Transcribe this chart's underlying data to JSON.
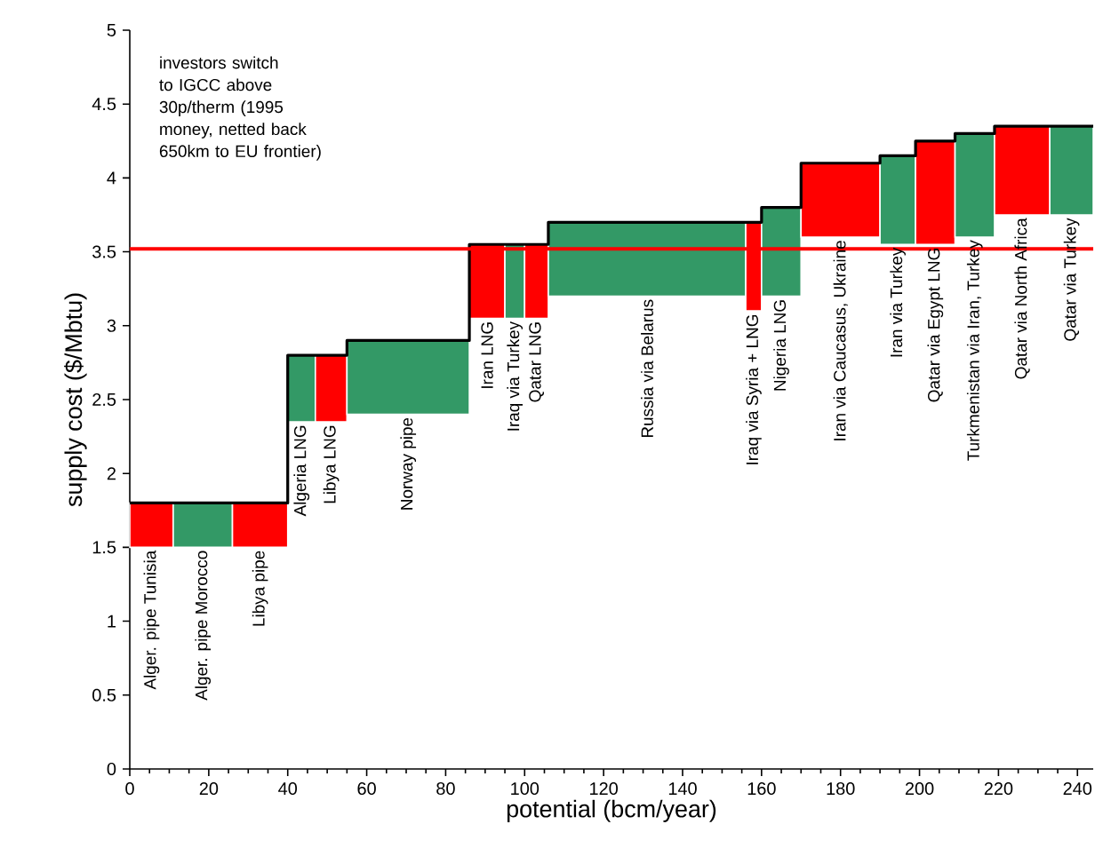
{
  "chart_data": {
    "type": "histogram",
    "xlabel": "potential (bcm/year)",
    "ylabel": "supply cost ($/Mbtu)",
    "bins": [
      0,
      11,
      26,
      40,
      47,
      55,
      86,
      95,
      100,
      106,
      156,
      160,
      170,
      190,
      199,
      209,
      219,
      233,
      244
    ],
    "base": [
      1.5,
      1.5,
      1.5,
      2.35,
      2.35,
      2.4,
      3.05,
      3.05,
      3.05,
      3.2,
      3.1,
      3.2,
      3.6,
      3.55,
      3.55,
      3.6,
      3.75,
      3.75
    ],
    "values": [
      0.3,
      0.3,
      0.3,
      0.45,
      0.45,
      0.5,
      0.5,
      0.5,
      0.5,
      0.5,
      0.6,
      0.6,
      0.5,
      0.6,
      0.7,
      0.7,
      0.6,
      0.6
    ],
    "colors": [
      "#ff0000",
      "#339966",
      "#ff0000",
      "#339966",
      "#ff0000",
      "#339966",
      "#ff0000",
      "#339966",
      "#ff0000",
      "#339966",
      "#ff0000",
      "#339966",
      "#ff0000",
      "#339966",
      "#ff0000",
      "#339966",
      "#ff0000",
      "#339966"
    ],
    "series": [
      {
        "type": "step",
        "color": "#000000",
        "x": [
          0,
          11,
          26,
          40,
          47,
          55,
          86,
          95,
          100,
          106,
          156,
          160,
          170,
          190,
          199,
          209,
          219,
          233,
          244
        ],
        "values": [
          1.8,
          1.8,
          1.8,
          2.8,
          2.8,
          2.9,
          3.55,
          3.55,
          3.55,
          3.7,
          3.7,
          3.8,
          4.1,
          4.15,
          4.25,
          4.3,
          4.35,
          4.35,
          4.35
        ]
      }
    ],
    "xlim": [
      0,
      244
    ],
    "xticks": [
      0,
      20,
      40,
      60,
      80,
      100,
      120,
      140,
      160,
      180,
      200,
      220,
      240
    ],
    "ylim": [
      0,
      5
    ],
    "yticks": [
      0,
      0.5,
      1,
      1.5,
      2,
      2.5,
      3,
      3.5,
      4,
      4.5,
      5
    ],
    "ref_lines": [
      {
        "axis": "y",
        "value": 3.52,
        "color": "#ff0000"
      }
    ],
    "annotations": [
      "investors switch to IGCC above 30p/therm (1995 money, netted back 650km to EU frontier)",
      {
        "text": "Alger. pipe Tunisia",
        "x": 5.5,
        "y": 1.5
      },
      {
        "text": "Alger. pipe Morocco",
        "x": 18.5,
        "y": 1.5
      },
      {
        "text": "Libya pipe",
        "x": 33,
        "y": 1.5
      },
      {
        "text": "Algeria LNG",
        "x": 43.5,
        "y": 2.35
      },
      {
        "text": "Libya LNG",
        "x": 51,
        "y": 2.35
      },
      {
        "text": "Norway pipe",
        "x": 70.5,
        "y": 2.4
      },
      {
        "text": "Iran LNG",
        "x": 90.5,
        "y": 3.05
      },
      {
        "text": "Iraq via Turkey",
        "x": 97.5,
        "y": 3.05
      },
      {
        "text": "Qatar LNG",
        "x": 103,
        "y": 3.05
      },
      {
        "text": "Russia via Belarus",
        "x": 131,
        "y": 3.2
      },
      {
        "text": "Iraq via Syria + LNG",
        "x": 158,
        "y": 3.1
      },
      {
        "text": "Nigeria LNG",
        "x": 165,
        "y": 3.2
      },
      {
        "text": "Iran via Caucasus, Ukraine",
        "x": 180,
        "y": 3.6
      },
      {
        "text": "Iran via Turkey",
        "x": 194.5,
        "y": 3.55
      },
      {
        "text": "Qatar via Egypt LNG",
        "x": 204,
        "y": 3.55
      },
      {
        "text": "Turkmenistan via Iran, Turkey",
        "x": 214,
        "y": 3.6
      },
      {
        "text": "Qatar via North Africa",
        "x": 226,
        "y": 3.75
      },
      {
        "text": "Qatar via Turkey",
        "x": 238.5,
        "y": 3.75
      }
    ]
  }
}
